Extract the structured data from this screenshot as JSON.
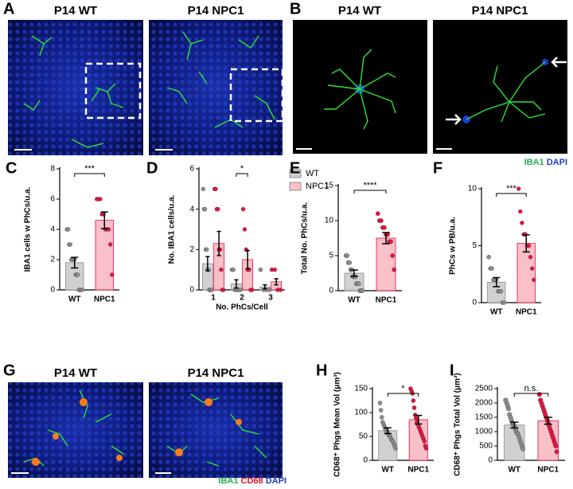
{
  "panels": {
    "A": {
      "letter": "A",
      "titles": [
        "P14 WT",
        "P14 NPC1"
      ]
    },
    "B": {
      "letter": "B",
      "titles": [
        "P14 WT",
        "P14 NPC1"
      ],
      "legend": [
        "IBA1",
        "DAPI"
      ]
    },
    "G": {
      "letter": "G",
      "titles": [
        "P14 WT",
        "P14 NPC1"
      ],
      "legend": [
        "IBA1",
        "CD68",
        "DAPI"
      ]
    }
  },
  "chart_data": [
    {
      "type": "bar",
      "label": "C",
      "ylabel": "IBA1 cells w PhCs/u.a.",
      "categories": [
        "WT",
        "NPC1"
      ],
      "values": [
        1.8,
        4.6
      ],
      "errors": [
        0.35,
        0.55
      ],
      "points": [
        [
          4,
          4,
          3,
          3,
          2,
          2,
          2,
          2,
          1,
          1,
          1,
          0,
          0,
          0,
          0
        ],
        [
          6,
          6,
          6,
          5,
          5,
          4,
          4,
          4,
          3,
          1
        ]
      ],
      "colors": [
        "#d0d0d0",
        "#f9c0c8"
      ],
      "point_colors": [
        "#8c8c8c",
        "#e8113e"
      ],
      "significance": "***",
      "ylim": [
        0,
        8
      ],
      "yticks": [
        0,
        2,
        4,
        6,
        8
      ]
    },
    {
      "type": "grouped_bar",
      "label": "D",
      "ylabel": "No. IBA1 cells/u.a.",
      "xlabel": "No. PhCs/Cell",
      "categories": [
        "1",
        "2",
        "3"
      ],
      "series": [
        {
          "name": "WT",
          "color": "#d0d0d0",
          "point_color": "#8c8c8c",
          "values": [
            1.3,
            0.3,
            0.15
          ],
          "errors": [
            0.35,
            0.2,
            0.1
          ],
          "points": [
            [
              5,
              4,
              4,
              2,
              2,
              1,
              1,
              0,
              0,
              0,
              0
            ],
            [
              1,
              1,
              0,
              0,
              0,
              0,
              0
            ],
            [
              1,
              0,
              0,
              0
            ]
          ]
        },
        {
          "name": "NPC1",
          "color": "#f9c0c8",
          "point_color": "#e8113e",
          "values": [
            2.3,
            1.5,
            0.4
          ],
          "errors": [
            0.6,
            0.45,
            0.15
          ],
          "points": [
            [
              5,
              5,
              4,
              4,
              2,
              2,
              1,
              0,
              0
            ],
            [
              4,
              3,
              2,
              1,
              1,
              0,
              0
            ],
            [
              1,
              1,
              0,
              0
            ]
          ]
        }
      ],
      "significance": "*",
      "ylim": [
        0,
        6
      ],
      "yticks": [
        0,
        2,
        4,
        6
      ]
    },
    {
      "type": "bar",
      "label": "E",
      "ylabel": "Total No. PhCs/u.a.",
      "categories": [
        "WT",
        "NPC1"
      ],
      "values": [
        2.5,
        7.5
      ],
      "errors": [
        0.45,
        0.8
      ],
      "points": [
        [
          5,
          5,
          4,
          4,
          3,
          3,
          2,
          2,
          2,
          1,
          1,
          1,
          0,
          0,
          0
        ],
        [
          11,
          10,
          10,
          9,
          9,
          8,
          8,
          7,
          7,
          5,
          3
        ]
      ],
      "colors": [
        "#d0d0d0",
        "#f9c0c8"
      ],
      "point_colors": [
        "#8c8c8c",
        "#e8113e"
      ],
      "significance": "****",
      "ylim": [
        0,
        15
      ],
      "yticks": [
        0,
        5,
        10,
        15
      ]
    },
    {
      "type": "bar",
      "label": "F",
      "ylabel": "PhCs w PB/u.a.",
      "categories": [
        "WT",
        "NPC1"
      ],
      "values": [
        1.8,
        5.2
      ],
      "errors": [
        0.4,
        0.75
      ],
      "points": [
        [
          4,
          3,
          3,
          2,
          2,
          2,
          1,
          1,
          1,
          0,
          0
        ],
        [
          10,
          8,
          7,
          6,
          6,
          5,
          5,
          4,
          3,
          2
        ]
      ],
      "colors": [
        "#d0d0d0",
        "#f9c0c8"
      ],
      "point_colors": [
        "#8c8c8c",
        "#e8113e"
      ],
      "significance": "***",
      "ylim": [
        0,
        10
      ],
      "yticks": [
        0,
        5,
        10
      ]
    },
    {
      "type": "bar",
      "label": "H",
      "ylabel": "CD68⁺ Phgs Mean Vol (μm³)",
      "categories": [
        "WT",
        "NPC1"
      ],
      "values": [
        62,
        85
      ],
      "errors": [
        6,
        9
      ],
      "points": [
        [
          120,
          105,
          90,
          80,
          75,
          70,
          65,
          62,
          60,
          55,
          52,
          50,
          45,
          42,
          40,
          35,
          30,
          25
        ],
        [
          150,
          145,
          140,
          125,
          110,
          95,
          88,
          80,
          75,
          70,
          65,
          60,
          55,
          50,
          45,
          40,
          30,
          25
        ]
      ],
      "colors": [
        "#d0d0d0",
        "#f9c0c8"
      ],
      "point_colors": [
        "#8c8c8c",
        "#e8113e"
      ],
      "significance": "*",
      "ylim": [
        0,
        150
      ],
      "yticks": [
        0,
        50,
        100,
        150
      ]
    },
    {
      "type": "bar",
      "label": "I",
      "ylabel": "CD68⁺ Phgs Total Vol (μm³)",
      "categories": [
        "WT",
        "NPC1"
      ],
      "values": [
        1230,
        1380
      ],
      "errors": [
        100,
        120
      ],
      "points": [
        [
          2100,
          2000,
          1900,
          1800,
          1600,
          1500,
          1400,
          1300,
          1250,
          1200,
          1100,
          1000,
          950,
          900,
          800,
          700,
          600,
          500,
          400
        ],
        [
          2300,
          2100,
          2000,
          1900,
          1800,
          1700,
          1600,
          1500,
          1400,
          1300,
          1200,
          1100,
          1000,
          900,
          800,
          700,
          600,
          500,
          300
        ]
      ],
      "colors": [
        "#d0d0d0",
        "#f9c0c8"
      ],
      "point_colors": [
        "#8c8c8c",
        "#e8113e"
      ],
      "significance": "n.s.",
      "ylim": [
        0,
        2500
      ],
      "yticks": [
        0,
        500,
        1000,
        1500,
        2000,
        2500
      ]
    }
  ]
}
